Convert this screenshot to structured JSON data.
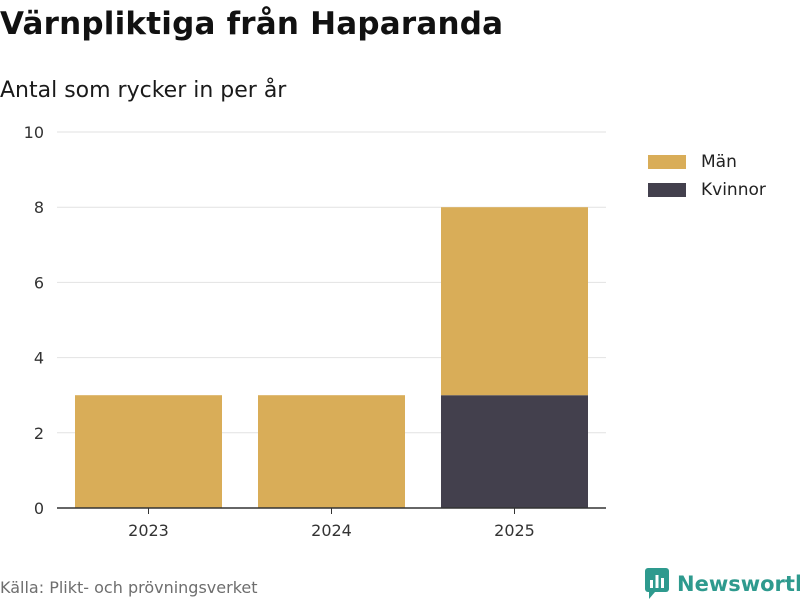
{
  "header": {
    "title": "Värnpliktiga från Haparanda",
    "subtitle": "Antal som rycker in per år"
  },
  "chart_data": {
    "type": "bar",
    "stacked": true,
    "categories": [
      "2023",
      "2024",
      "2025"
    ],
    "series": [
      {
        "name": "Kvinnor",
        "values": [
          0,
          0,
          3
        ],
        "color": "#43404d"
      },
      {
        "name": "Män",
        "values": [
          3,
          3,
          5
        ],
        "color": "#d9ad58"
      }
    ],
    "legend_order": [
      "Män",
      "Kvinnor"
    ],
    "legend_placement": "right",
    "ylim": [
      0,
      10
    ],
    "yticks": [
      0,
      2,
      4,
      6,
      8,
      10
    ],
    "grid": true,
    "xlabel": "",
    "ylabel": ""
  },
  "legend": {
    "items": [
      {
        "label": "Män",
        "color": "#d9ad58"
      },
      {
        "label": "Kvinnor",
        "color": "#43404d"
      }
    ]
  },
  "footer": {
    "source": "Källa: Plikt- och prövningsverket",
    "brand": "Newsworthy",
    "brand_color": "#2e9a8e",
    "logo_icon": "newsworthy-logo-icon"
  }
}
